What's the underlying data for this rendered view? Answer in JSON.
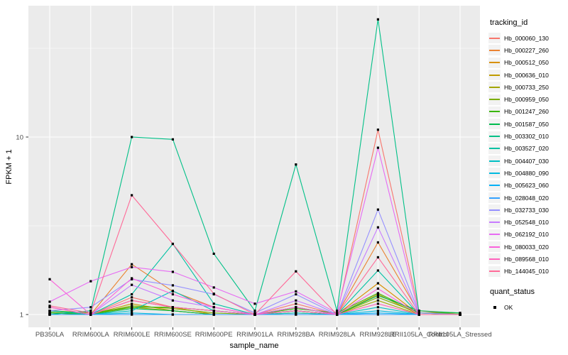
{
  "axes": {
    "x_title": "sample_name",
    "y_title": "FPKM + 1"
  },
  "legend": {
    "tracking_title": "tracking_id",
    "quant_title": "quant_status",
    "quant_items": [
      {
        "label": "OK",
        "marker": "black-square"
      }
    ]
  },
  "colors": {
    "panel_bg": "#EBEBEB",
    "grid": "#FFFFFF",
    "legend_key_bg": "#F2F2F2",
    "tick_text": "#4D4D4D",
    "marker": "#000000"
  },
  "chart_data": {
    "type": "line",
    "title": "",
    "xlabel": "sample_name",
    "ylabel": "FPKM + 1",
    "y_scale": "log10",
    "y_ticks": [
      1,
      10
    ],
    "y_minor_ticks": [
      3.1623,
      31.623
    ],
    "ylim": [
      0.93,
      60
    ],
    "legend_position": "right",
    "grid": "on",
    "marker": {
      "shape": "square",
      "color": "#000000",
      "size": 3.2
    },
    "categories": [
      "PB350LA",
      "RRIM600LA",
      "RRIM600LE",
      "RRIM600SE",
      "RRIM600PE",
      "RRIM901LA",
      "RRIM928BA",
      "RRIM928LA",
      "RRIM928LE",
      "RRII105LA_Control",
      "RRII105LA_Stressed"
    ],
    "series": [
      {
        "name": "Hb_000060_130",
        "color": "#F8766D",
        "values": [
          1.02,
          1.0,
          1.25,
          1.1,
          1.05,
          1.0,
          1.15,
          1.0,
          11.0,
          1.05,
          1.0
        ]
      },
      {
        "name": "Hb_000227_260",
        "color": "#EA8331",
        "values": [
          1.05,
          1.0,
          1.92,
          1.35,
          1.1,
          1.0,
          1.1,
          1.0,
          2.55,
          1.02,
          1.0
        ]
      },
      {
        "name": "Hb_000512_050",
        "color": "#D89000",
        "values": [
          1.0,
          1.0,
          1.2,
          1.1,
          1.0,
          1.0,
          1.05,
          1.0,
          1.5,
          1.0,
          1.0
        ]
      },
      {
        "name": "Hb_000636_010",
        "color": "#C09B00",
        "values": [
          1.02,
          1.0,
          1.15,
          1.05,
          1.0,
          1.0,
          1.02,
          1.0,
          1.3,
          1.0,
          1.0
        ]
      },
      {
        "name": "Hb_000733_250",
        "color": "#A3A500",
        "values": [
          1.0,
          1.0,
          1.1,
          1.05,
          1.0,
          1.0,
          1.05,
          1.0,
          1.2,
          1.0,
          1.0
        ]
      },
      {
        "name": "Hb_000959_050",
        "color": "#7CAE00",
        "values": [
          1.03,
          1.0,
          1.12,
          1.08,
          1.02,
          1.0,
          1.05,
          1.0,
          1.25,
          1.02,
          1.0
        ]
      },
      {
        "name": "Hb_001247_260",
        "color": "#39B600",
        "values": [
          1.05,
          1.02,
          1.1,
          1.1,
          1.05,
          1.0,
          1.08,
          1.02,
          1.32,
          1.02,
          1.02
        ]
      },
      {
        "name": "Hb_001587_050",
        "color": "#00BB4E",
        "values": [
          1.02,
          1.0,
          1.08,
          1.05,
          1.0,
          1.0,
          1.05,
          1.0,
          1.28,
          1.05,
          1.02
        ]
      },
      {
        "name": "Hb_003302_010",
        "color": "#00C087",
        "values": [
          1.0,
          1.05,
          10.0,
          9.7,
          2.2,
          1.05,
          7.0,
          1.05,
          46.0,
          1.02,
          1.0
        ]
      },
      {
        "name": "Hb_003527_020",
        "color": "#00C1A3",
        "values": [
          1.05,
          1.0,
          1.3,
          2.5,
          1.15,
          1.0,
          1.1,
          1.0,
          1.77,
          1.0,
          1.0
        ]
      },
      {
        "name": "Hb_004407_030",
        "color": "#00BFC4",
        "values": [
          1.0,
          1.0,
          1.05,
          1.36,
          1.05,
          1.0,
          1.02,
          1.0,
          1.1,
          1.0,
          1.0
        ]
      },
      {
        "name": "Hb_004880_090",
        "color": "#00BAE0",
        "values": [
          1.0,
          1.0,
          1.02,
          1.0,
          1.0,
          1.0,
          1.0,
          1.0,
          1.05,
          1.0,
          1.0
        ]
      },
      {
        "name": "Hb_005623_060",
        "color": "#00B0F6",
        "values": [
          1.0,
          1.0,
          1.0,
          1.0,
          1.0,
          1.0,
          1.0,
          1.0,
          1.02,
          1.0,
          1.0
        ]
      },
      {
        "name": "Hb_028048_020",
        "color": "#35A2FF",
        "values": [
          1.0,
          1.0,
          1.0,
          1.0,
          1.0,
          1.0,
          1.0,
          1.0,
          1.0,
          1.0,
          1.0
        ]
      },
      {
        "name": "Hb_032733_030",
        "color": "#9590FF",
        "values": [
          1.05,
          1.1,
          1.58,
          1.46,
          1.3,
          1.02,
          1.3,
          1.0,
          3.9,
          1.02,
          1.0
        ]
      },
      {
        "name": "Hb_052548_010",
        "color": "#C77CFF",
        "values": [
          1.1,
          1.0,
          1.47,
          1.2,
          1.1,
          1.0,
          1.2,
          1.0,
          3.1,
          1.0,
          1.0
        ]
      },
      {
        "name": "Hb_062192_010",
        "color": "#E76BF3",
        "values": [
          1.18,
          1.54,
          1.85,
          1.74,
          1.42,
          1.15,
          1.35,
          1.02,
          8.7,
          1.0,
          1.0
        ]
      },
      {
        "name": "Hb_080033_020",
        "color": "#FA62DB",
        "values": [
          1.58,
          1.0,
          1.6,
          1.3,
          1.1,
          1.0,
          1.1,
          1.0,
          1.4,
          1.0,
          1.0
        ]
      },
      {
        "name": "Hb_089568_010",
        "color": "#FF62BC",
        "values": [
          1.1,
          1.0,
          1.2,
          1.1,
          1.05,
          1.0,
          1.05,
          1.0,
          1.15,
          1.0,
          1.0
        ]
      },
      {
        "name": "Hb_144045_010",
        "color": "#FF6A98",
        "values": [
          1.12,
          1.02,
          4.7,
          2.5,
          1.31,
          1.0,
          1.75,
          1.0,
          2.1,
          1.0,
          1.0
        ]
      }
    ]
  }
}
